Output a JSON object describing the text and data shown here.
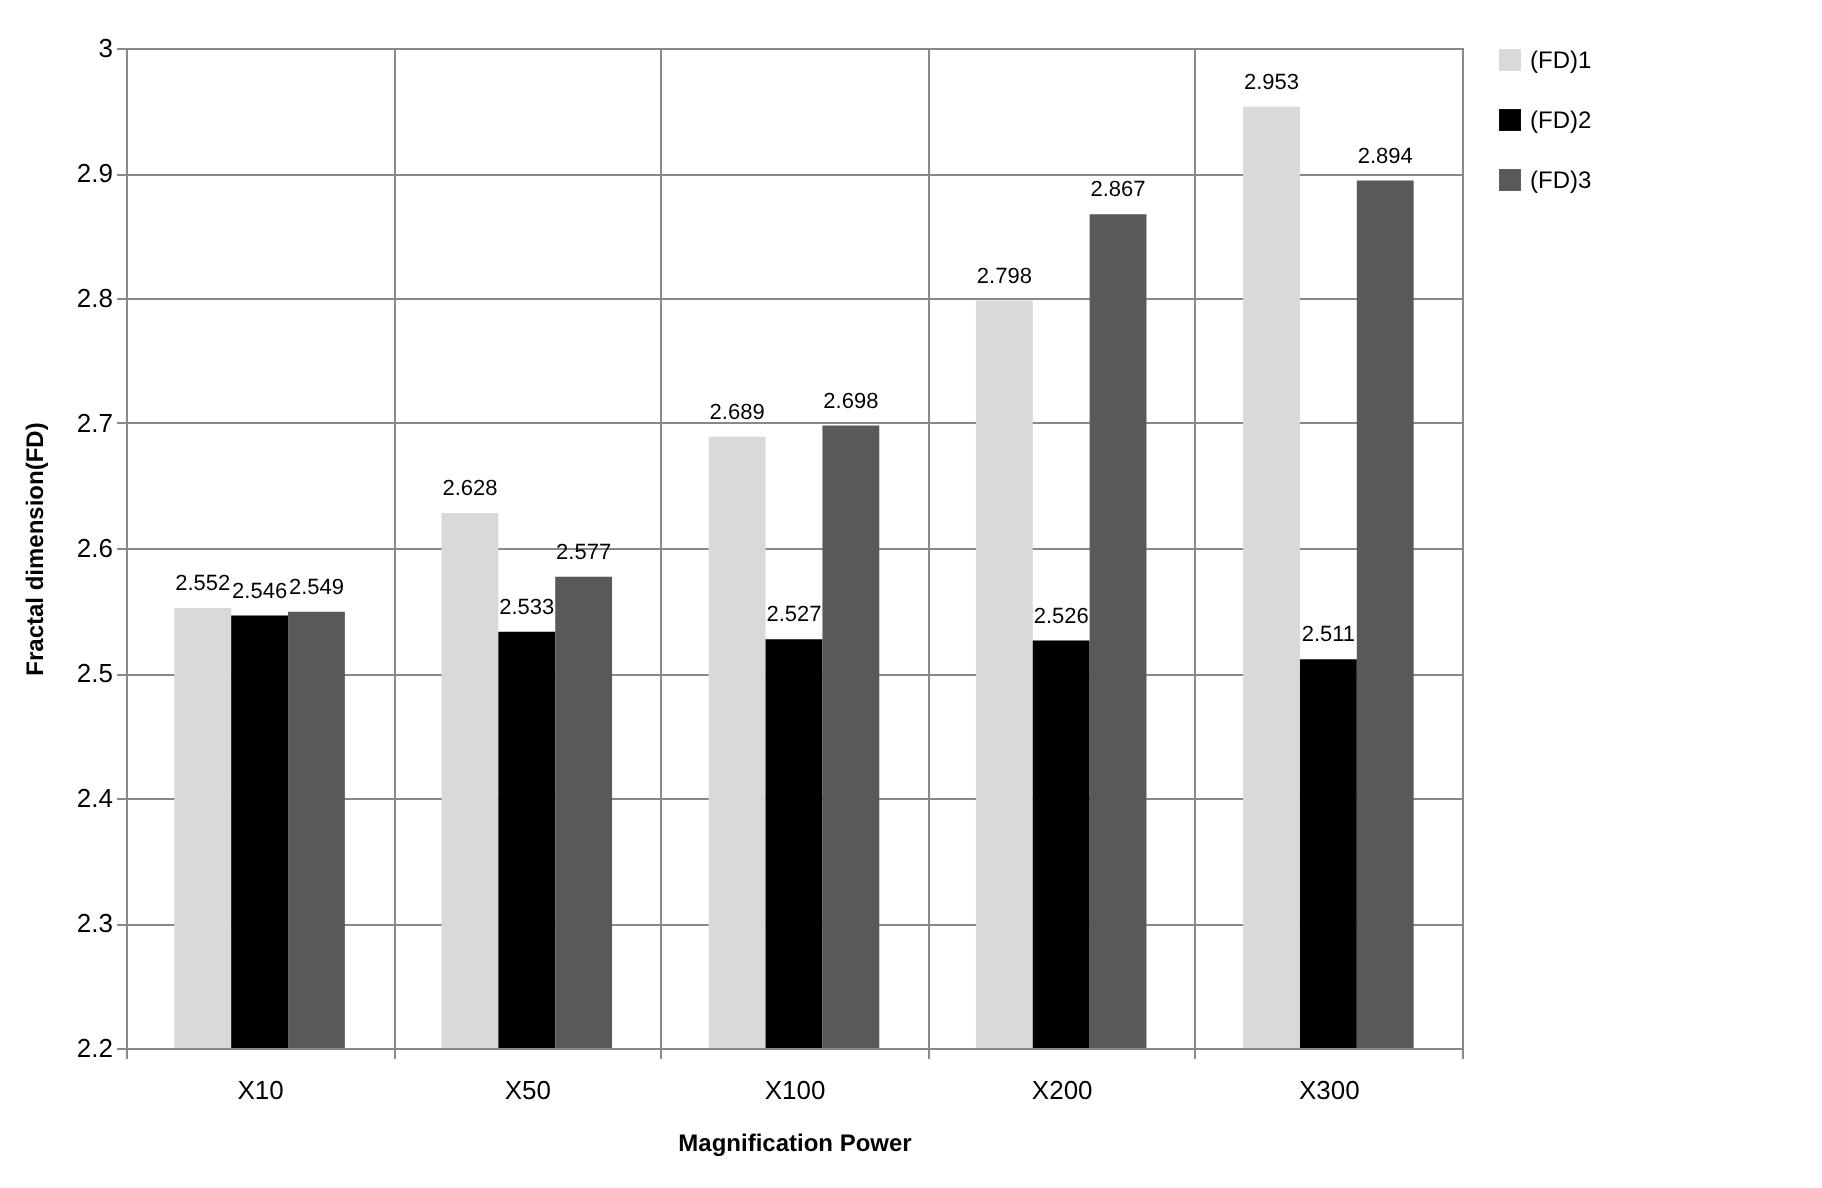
{
  "chart_data": {
    "type": "bar",
    "xlabel": "Magnification Power",
    "ylabel": "Fractal dimension(FD)",
    "categories": [
      "X10",
      "X50",
      "X100",
      "X200",
      "X300"
    ],
    "series": [
      {
        "name": "(FD)1",
        "color": "#d9d9d9",
        "values": [
          2.552,
          2.628,
          2.689,
          2.798,
          2.953
        ]
      },
      {
        "name": "(FD)2",
        "color": "#000000",
        "values": [
          2.546,
          2.533,
          2.527,
          2.526,
          2.511
        ]
      },
      {
        "name": "(FD)3",
        "color": "#595959",
        "values": [
          2.549,
          2.577,
          2.698,
          2.867,
          2.894
        ]
      }
    ],
    "ylim": [
      2.2,
      3
    ],
    "yticks": [
      2.2,
      2.3,
      2.4,
      2.5,
      2.6,
      2.7,
      2.8,
      2.9,
      3
    ],
    "grid": true,
    "legend": "right",
    "data_labels": true
  }
}
